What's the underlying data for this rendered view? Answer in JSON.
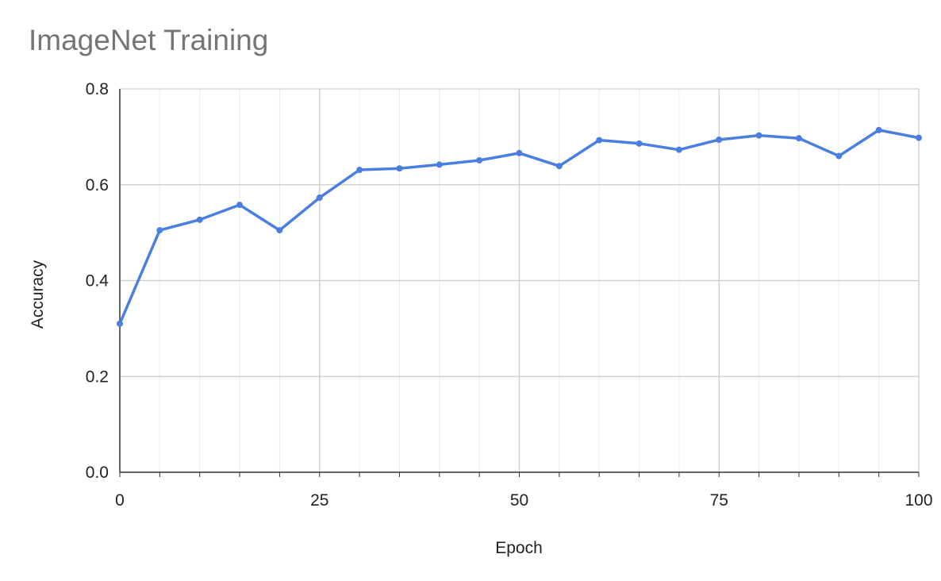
{
  "chart_data": {
    "type": "line",
    "title": "ImageNet Training",
    "xlabel": "Epoch",
    "ylabel": "Accuracy",
    "xlim": [
      0,
      100
    ],
    "ylim": [
      0,
      0.8
    ],
    "x_ticks": [
      "0",
      "25",
      "50",
      "75",
      "100"
    ],
    "y_ticks": [
      "0.0",
      "0.2",
      "0.4",
      "0.6",
      "0.8"
    ],
    "grid": true,
    "legend": "none",
    "color": "#4a7fe0",
    "x": [
      0,
      5,
      10,
      15,
      20,
      25,
      30,
      35,
      40,
      45,
      50,
      55,
      60,
      65,
      70,
      75,
      80,
      85,
      90,
      95,
      100
    ],
    "y": [
      0.31,
      0.505,
      0.527,
      0.558,
      0.505,
      0.573,
      0.631,
      0.634,
      0.642,
      0.651,
      0.666,
      0.639,
      0.693,
      0.686,
      0.673,
      0.694,
      0.703,
      0.697,
      0.66,
      0.714,
      0.698
    ]
  }
}
